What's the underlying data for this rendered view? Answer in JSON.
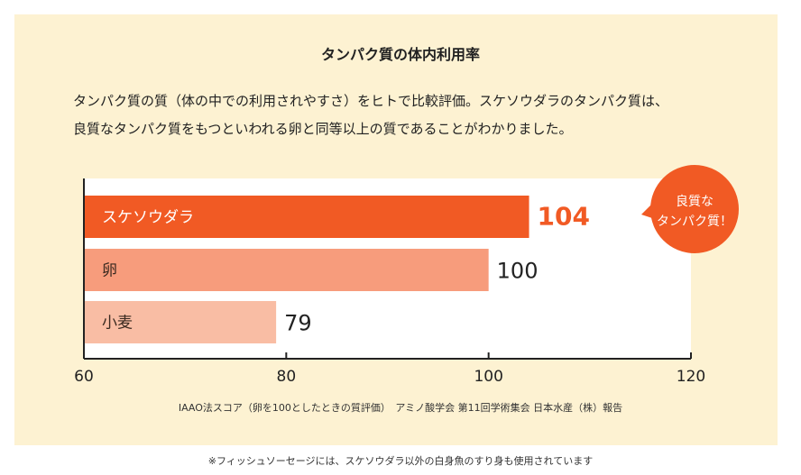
{
  "header": {
    "title": "タンパク質の体内利用率",
    "description_lines": [
      "タンパク質の質（体の中での利用されやすさ）をヒトで比較評価。スケソウダラのタンパク質は、",
      "良質なタンパク質をもつといわれる卵と同等以上の質であることがわかりました。"
    ]
  },
  "chart_data": {
    "type": "bar",
    "orientation": "horizontal",
    "categories": [
      "スケソウダラ",
      "卵",
      "小麦"
    ],
    "values": [
      104,
      100,
      79
    ],
    "value_labels": [
      "104",
      "100",
      "79"
    ],
    "xlim": [
      60,
      120
    ],
    "xticks": [
      "60",
      "80",
      "100",
      "120"
    ],
    "bar_colors": [
      "#f15a24",
      "#f79c7c",
      "#f9bda4"
    ],
    "highlight_label_color": "#f15a24",
    "callout": {
      "lines": [
        "良質な",
        "タンパク質！"
      ],
      "color": "#f15a24"
    },
    "title": "",
    "xlabel": "",
    "ylabel": "",
    "grid": false
  },
  "notes": {
    "source": "IAAO法スコア（卵を100としたときの質評価）　アミノ酸学会 第11回学術集会 日本水産（株）報告",
    "footnote": "※フィッシュソーセージには、スケソウダラ以外の白身魚のすり身も使用されています"
  }
}
